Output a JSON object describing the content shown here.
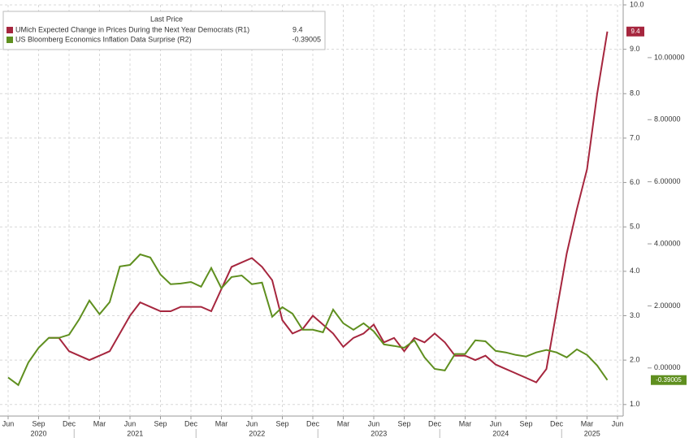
{
  "chart_data": {
    "type": "line",
    "legend_header": "Last Price",
    "categories": [
      "Jun",
      null,
      null,
      "Sep",
      null,
      null,
      "Dec",
      null,
      null,
      "Mar",
      null,
      null,
      "Jun",
      null,
      null,
      "Sep",
      null,
      null,
      "Dec",
      null,
      null,
      "Mar",
      null,
      null,
      "Jun",
      null,
      null,
      "Sep",
      null,
      null,
      "Dec",
      null,
      null,
      "Mar",
      null,
      null,
      "Jun",
      null,
      null,
      "Sep",
      null,
      null,
      "Dec",
      null,
      null,
      "Mar",
      null,
      null,
      "Jun",
      null,
      null,
      "Sep",
      null,
      null,
      "Dec",
      null,
      null,
      "Mar",
      null,
      null,
      "Jun"
    ],
    "years": [
      "2020",
      "2021",
      "2022",
      "2023",
      "2024",
      "2025"
    ],
    "series": [
      {
        "name": "UMich Expected Change in Prices During the Next Year Democrats  (R1)",
        "color": "#a6263e",
        "axis": "y",
        "values": [
          null,
          null,
          null,
          null,
          2.5,
          2.5,
          2.2,
          2.1,
          2.0,
          2.1,
          2.2,
          2.6,
          3.0,
          3.3,
          3.2,
          3.1,
          3.1,
          3.2,
          3.2,
          3.2,
          3.1,
          3.6,
          4.1,
          4.2,
          4.3,
          4.1,
          3.8,
          2.9,
          2.6,
          2.7,
          3.0,
          2.8,
          2.6,
          2.3,
          2.5,
          2.6,
          2.8,
          2.4,
          2.5,
          2.2,
          2.5,
          2.4,
          2.6,
          2.4,
          2.1,
          2.1,
          2.0,
          2.1,
          1.9,
          1.8,
          1.7,
          1.6,
          1.5,
          1.8,
          3.1,
          4.4,
          5.4,
          6.3,
          8.0,
          9.4,
          null
        ]
      },
      {
        "name": "US Bloomberg Economics Inflation Data Surprise  (R2)",
        "color": "#5f8f1f",
        "axis": "y2",
        "values": [
          -0.31,
          -0.55,
          0.18,
          0.65,
          0.97,
          0.97,
          1.07,
          1.57,
          2.17,
          1.73,
          2.12,
          3.27,
          3.32,
          3.66,
          3.56,
          3.01,
          2.7,
          2.72,
          2.77,
          2.62,
          3.22,
          2.57,
          2.93,
          2.98,
          2.7,
          2.75,
          1.65,
          1.96,
          1.75,
          1.23,
          1.23,
          1.15,
          1.88,
          1.44,
          1.23,
          1.44,
          1.18,
          0.76,
          0.71,
          0.65,
          0.89,
          0.34,
          -0.03,
          -0.08,
          0.45,
          0.45,
          0.89,
          0.86,
          0.55,
          0.5,
          0.42,
          0.37,
          0.5,
          0.58,
          0.5,
          0.34,
          0.6,
          0.42,
          0.08,
          -0.39005,
          null
        ]
      }
    ],
    "ylim": [
      0.74,
      10.0
    ],
    "yticks": [
      {
        "value": 1,
        "label": "1.0"
      },
      {
        "value": 2,
        "label": "2.0"
      },
      {
        "value": 3,
        "label": "3.0"
      },
      {
        "value": 4,
        "label": "4.0"
      },
      {
        "value": 5,
        "label": "5.0"
      },
      {
        "value": 6,
        "label": "6.0"
      },
      {
        "value": 7,
        "label": "7.0"
      },
      {
        "value": 8,
        "label": "8.0"
      },
      {
        "value": 9,
        "label": "9.0"
      },
      {
        "value": 10,
        "label": "10.0"
      }
    ],
    "y2lim": [
      -1.55,
      11.7
    ],
    "y2ticks": [
      {
        "value": 0,
        "label": "0.00000"
      },
      {
        "value": 2,
        "label": "2.00000"
      },
      {
        "value": 4,
        "label": "4.00000"
      },
      {
        "value": 6,
        "label": "6.00000"
      },
      {
        "value": 8,
        "label": "8.00000"
      },
      {
        "value": 10,
        "label": "10.00000"
      }
    ],
    "grid": true
  }
}
